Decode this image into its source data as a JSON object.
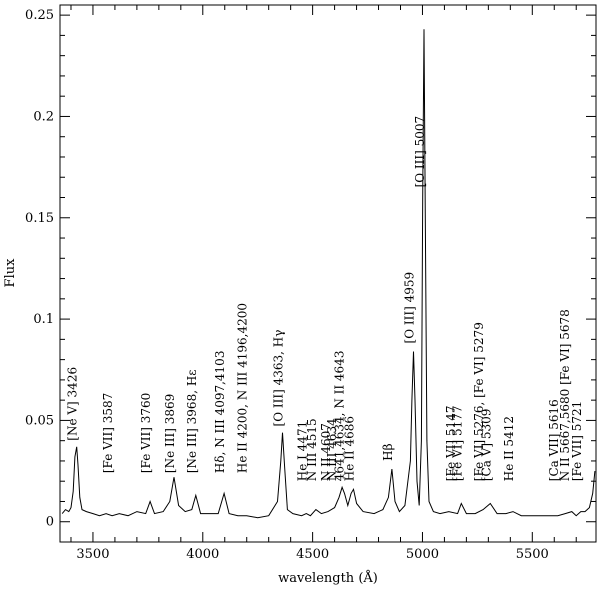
{
  "chart_data": {
    "type": "line",
    "title": "",
    "xlabel": "wavelength (Å)",
    "ylabel": "Flux",
    "xlim": [
      3350,
      5790
    ],
    "ylim": [
      -0.01,
      0.255
    ],
    "xticks": [
      3500,
      4000,
      4500,
      5000,
      5500
    ],
    "xtick_labels": [
      "3500",
      "4000",
      "4500",
      "5000",
      "5500"
    ],
    "yticks": [
      0,
      0.05,
      0.1,
      0.15,
      0.2,
      0.25
    ],
    "ytick_labels": [
      "0",
      "0.05",
      "0.1",
      "0.15",
      "0.2",
      "0.25"
    ],
    "grid": false,
    "series": [
      {
        "color": "#000000",
        "x": [
          3360,
          3375,
          3390,
          3400,
          3410,
          3418,
          3426,
          3432,
          3440,
          3450,
          3470,
          3500,
          3530,
          3560,
          3587,
          3620,
          3660,
          3700,
          3740,
          3760,
          3780,
          3820,
          3850,
          3869,
          3890,
          3920,
          3950,
          3968,
          3990,
          4030,
          4070,
          4097,
          4120,
          4160,
          4200,
          4250,
          4300,
          4340,
          4355,
          4363,
          4372,
          4385,
          4410,
          4450,
          4471,
          4490,
          4515,
          4540,
          4570,
          4600,
          4620,
          4634,
          4645,
          4660,
          4675,
          4686,
          4700,
          4730,
          4780,
          4820,
          4845,
          4861,
          4875,
          4895,
          4920,
          4945,
          4952,
          4959,
          4966,
          4975,
          4985,
          4995,
          5001,
          5007,
          5013,
          5020,
          5030,
          5050,
          5080,
          5120,
          5160,
          5177,
          5200,
          5240,
          5276,
          5309,
          5340,
          5380,
          5412,
          5450,
          5500,
          5550,
          5616,
          5650,
          5680,
          5700,
          5721,
          5740,
          5760,
          5775,
          5785
        ],
        "y": [
          0.004,
          0.006,
          0.005,
          0.007,
          0.015,
          0.032,
          0.037,
          0.028,
          0.012,
          0.006,
          0.005,
          0.004,
          0.003,
          0.004,
          0.003,
          0.004,
          0.003,
          0.005,
          0.004,
          0.01,
          0.004,
          0.005,
          0.01,
          0.022,
          0.008,
          0.005,
          0.006,
          0.013,
          0.004,
          0.004,
          0.004,
          0.014,
          0.004,
          0.003,
          0.003,
          0.002,
          0.003,
          0.01,
          0.03,
          0.044,
          0.028,
          0.006,
          0.004,
          0.003,
          0.004,
          0.003,
          0.006,
          0.004,
          0.005,
          0.007,
          0.012,
          0.017,
          0.014,
          0.008,
          0.014,
          0.016,
          0.009,
          0.005,
          0.004,
          0.006,
          0.012,
          0.026,
          0.01,
          0.005,
          0.008,
          0.03,
          0.06,
          0.084,
          0.06,
          0.02,
          0.008,
          0.04,
          0.16,
          0.243,
          0.15,
          0.04,
          0.01,
          0.005,
          0.004,
          0.005,
          0.004,
          0.009,
          0.004,
          0.004,
          0.006,
          0.009,
          0.004,
          0.004,
          0.005,
          0.003,
          0.003,
          0.003,
          0.003,
          0.004,
          0.005,
          0.003,
          0.005,
          0.005,
          0.007,
          0.014,
          0.025
        ]
      }
    ],
    "annotations": [
      {
        "text": "[Ne V]  3426",
        "x": 3426,
        "y": 0.04
      },
      {
        "text": "[Fe VII]  3587",
        "x": 3587,
        "y": 0.024
      },
      {
        "text": "[Fe VII]  3760",
        "x": 3760,
        "y": 0.024
      },
      {
        "text": "[Ne III]  3869",
        "x": 3869,
        "y": 0.024
      },
      {
        "text": "[Ne III]  3968, Hε",
        "x": 3968,
        "y": 0.024
      },
      {
        "text": "Hδ, N III 4097,4103",
        "x": 4097,
        "y": 0.024
      },
      {
        "text": "He II 4200, N III 4196,4200",
        "x": 4200,
        "y": 0.024
      },
      {
        "text": "[O III]  4363, Hγ",
        "x": 4363,
        "y": 0.047
      },
      {
        "text": "He I 4471",
        "x": 4471,
        "y": 0.02
      },
      {
        "text": "N III 4515",
        "x": 4515,
        "y": 0.02
      },
      {
        "text": "N II 4607",
        "x": 4580,
        "y": 0.02
      },
      {
        "text": "N III 4634",
        "x": 4607,
        "y": 0.02
      },
      {
        "text": "4641,4634, N II 4643",
        "x": 4641,
        "y": 0.02
      },
      {
        "text": "He II 4686",
        "x": 4686,
        "y": 0.02
      },
      {
        "text": "Hβ",
        "x": 4861,
        "y": 0.03
      },
      {
        "text": "[O III]  4959",
        "x": 4959,
        "y": 0.088
      },
      {
        "text": "[O III]  5007",
        "x": 5007,
        "y": 0.165
      },
      {
        "text": "[Fe VI]  5147",
        "x": 5147,
        "y": 0.02
      },
      {
        "text": "[Fe VI]  5177",
        "x": 5177,
        "y": 0.02
      },
      {
        "text": "[Fe VI]  5276, [Fe VI]  5279",
        "x": 5276,
        "y": 0.02
      },
      {
        "text": "[Ca V]  5309",
        "x": 5309,
        "y": 0.02
      },
      {
        "text": "He II 5412",
        "x": 5412,
        "y": 0.02
      },
      {
        "text": "[Ca VII]  5616",
        "x": 5616,
        "y": 0.02
      },
      {
        "text": "N II 5667,5680 [Fe VI]  5678",
        "x": 5667,
        "y": 0.02
      },
      {
        "text": "[Fe VII]  5721",
        "x": 5721,
        "y": 0.02
      }
    ]
  }
}
